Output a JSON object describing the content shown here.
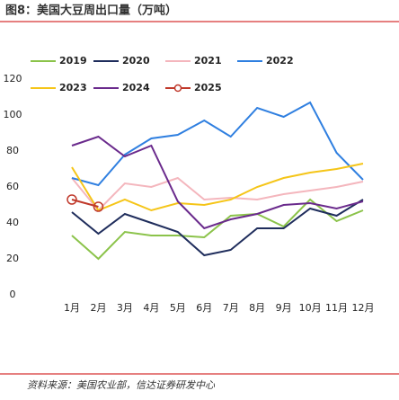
{
  "chart_data": {
    "type": "line",
    "title": "图8：美国大豆周出口量（万吨）",
    "source": "资料来源：美国农业部，信达证券研发中心",
    "categories": [
      "1月",
      "2月",
      "3月",
      "4月",
      "5月",
      "6月",
      "7月",
      "8月",
      "9月",
      "10月",
      "11月",
      "12月"
    ],
    "series": [
      {
        "name": "2019",
        "color": "#8bc34a",
        "values": [
          33,
          20,
          35,
          33,
          33,
          32,
          44,
          45,
          38,
          53,
          41,
          47
        ]
      },
      {
        "name": "2020",
        "color": "#1f2d5c",
        "values": [
          46,
          34,
          45,
          40,
          35,
          22,
          25,
          37,
          37,
          48,
          44,
          53
        ]
      },
      {
        "name": "2021",
        "color": "#f4b6bd",
        "values": [
          65,
          47,
          62,
          60,
          65,
          53,
          54,
          53,
          56,
          58,
          60,
          63
        ]
      },
      {
        "name": "2022",
        "color": "#2f7fe0",
        "values": [
          65,
          61,
          78,
          87,
          89,
          97,
          88,
          104,
          99,
          107,
          79,
          64
        ]
      },
      {
        "name": "2023",
        "color": "#f5c518",
        "values": [
          71,
          47,
          53,
          47,
          51,
          50,
          53,
          60,
          65,
          68,
          70,
          73
        ]
      },
      {
        "name": "2024",
        "color": "#6a2a8c",
        "values": [
          83,
          88,
          77,
          83,
          52,
          37,
          42,
          45,
          50,
          51,
          48,
          52
        ]
      },
      {
        "name": "2025",
        "color": "#c0392b",
        "markers": true,
        "values": [
          53,
          49,
          null,
          null,
          null,
          null,
          null,
          null,
          null,
          null,
          null,
          null
        ]
      }
    ],
    "ylim": [
      0,
      120
    ],
    "yticks": [
      0,
      20,
      40,
      60,
      80,
      100,
      120
    ]
  }
}
